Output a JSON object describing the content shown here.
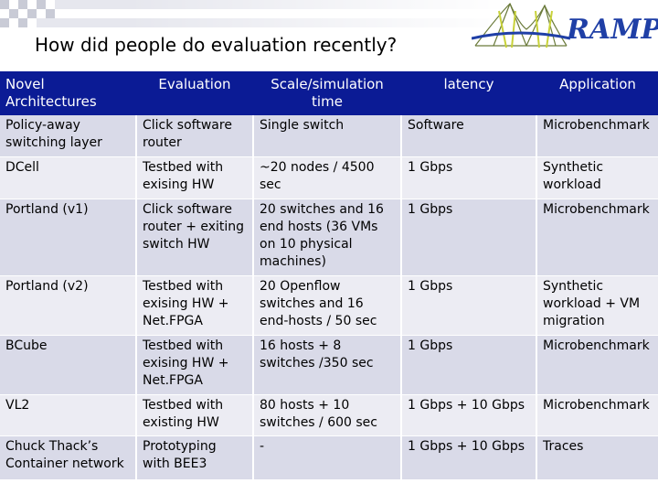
{
  "title": "How did people do evaluation recently?",
  "logo": {
    "text": "RAMP"
  },
  "colors": {
    "header_bg": "#0b1b95",
    "row_dark": "#d9dae8",
    "row_light": "#ececf3"
  },
  "table": {
    "headers": [
      "Novel Architectures",
      "Evaluation",
      "Scale/simulation time",
      "latency",
      "Application"
    ],
    "rows": [
      [
        "Policy-away switching layer",
        "Click software router",
        "Single switch",
        "Software",
        "Microbenchmark"
      ],
      [
        "DCell",
        "Testbed with exising HW",
        "~20 nodes / 4500 sec",
        "1 Gbps",
        "Synthetic workload"
      ],
      [
        "Portland (v1)",
        "Click software router + exiting switch HW",
        "20 switches and 16 end hosts (36 VMs on 10 physical machines)",
        "1 Gbps",
        "Microbenchmark"
      ],
      [
        "Portland (v2)",
        "Testbed with exising HW + Net.FPGA",
        "20 Openflow switches and 16 end-hosts / 50 sec",
        "1 Gbps",
        "Synthetic workload + VM migration"
      ],
      [
        "BCube",
        "Testbed with exising HW + Net.FPGA",
        "16 hosts + 8 switches /350 sec",
        "1 Gbps",
        "Microbenchmark"
      ],
      [
        "VL2",
        "Testbed with existing HW",
        "80 hosts + 10 switches / 600 sec",
        "1 Gbps + 10 Gbps",
        "Microbenchmark"
      ],
      [
        "Chuck Thack’s Container network",
        "Prototyping with BEE3",
        "-",
        "1 Gbps + 10 Gbps",
        "Traces"
      ]
    ]
  }
}
